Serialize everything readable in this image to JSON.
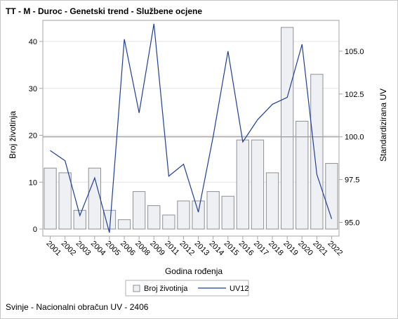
{
  "title": "TT - M - Duroc - Genetski trend - Službene ocjene",
  "footnote": "Svinje - Nacionalni obračun UV - 2406",
  "colors": {
    "bar_fill": "#eef0f4",
    "bar_stroke": "#8e9096",
    "line": "#1f3f99",
    "grid": "#e6e6e6",
    "axis": "#a6a6a6",
    "reference_line": "#a0a0a0"
  },
  "chart_data": {
    "type": "bar+line",
    "xlabel": "Godina rođenja",
    "ylabel": "Broj životinja",
    "y2label": "Standardizirana UV",
    "ylim": [
      -1.5,
      44.5
    ],
    "y2lim": [
      94.2,
      106.8
    ],
    "yticks": [
      0,
      10,
      20,
      30,
      40
    ],
    "y2ticks": [
      95.0,
      97.5,
      100.0,
      102.5,
      105.0
    ],
    "y2tick_labels": [
      "95.0",
      "97.5",
      "100.0",
      "102.5",
      "105.0"
    ],
    "reference_line_y2": 100.0,
    "grid": true,
    "legend_position": "bottom",
    "categories": [
      "2001",
      "2002",
      "2003",
      "2004",
      "2005",
      "2006",
      "2008",
      "2009",
      "2011",
      "2012",
      "2013",
      "2014",
      "2015",
      "2016",
      "2017",
      "2018",
      "2019",
      "2020",
      "2021",
      "2022"
    ],
    "series": [
      {
        "name": "Broj životinja",
        "type": "bar",
        "axis": "y",
        "values": [
          13,
          12,
          4,
          13,
          4,
          2,
          8,
          5,
          3,
          6,
          6,
          8,
          7,
          19,
          19,
          12,
          43,
          23,
          33,
          14
        ]
      },
      {
        "name": "UV12",
        "type": "line",
        "axis": "y2",
        "values": [
          99.2,
          98.6,
          95.4,
          97.6,
          94.4,
          105.7,
          101.4,
          106.6,
          97.7,
          98.4,
          95.6,
          100.0,
          105.0,
          99.7,
          101.0,
          101.9,
          102.3,
          105.4,
          97.8,
          95.2
        ]
      }
    ]
  }
}
